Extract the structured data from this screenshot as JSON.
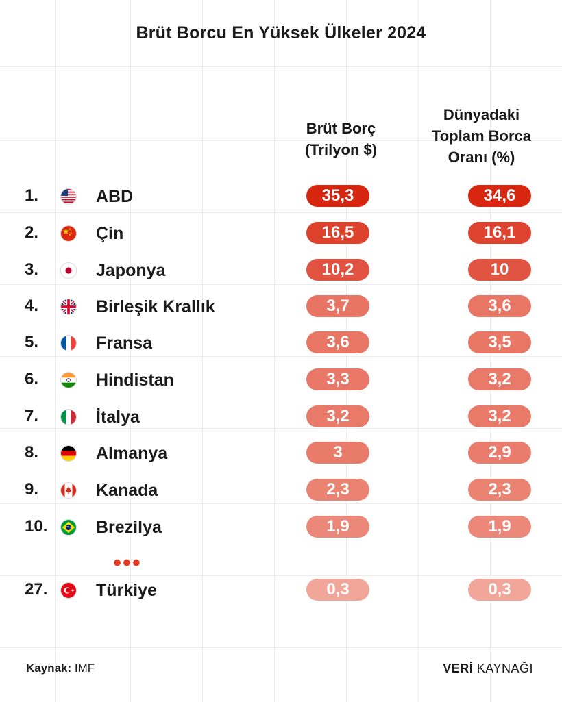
{
  "title": "Brüt Borcu En Yüksek Ülkeler 2024",
  "columns": {
    "debt": "Brüt Borç\n(Trilyon $)",
    "share": "Dünyadaki\nToplam Borca\nOranı (%)"
  },
  "chart_data": {
    "type": "table",
    "title": "Brüt Borcu En Yüksek Ülkeler 2024",
    "columns": [
      "Brüt Borç (Trilyon $)",
      "Dünyadaki Toplam Borca Oranı (%)"
    ],
    "rows": [
      {
        "rank": "1.",
        "country": "ABD",
        "flag": "us-flag-icon",
        "debt": "35,3",
        "share": "34,6",
        "debt_value": 35.3,
        "share_value": 34.6
      },
      {
        "rank": "2.",
        "country": "Çin",
        "flag": "cn-flag-icon",
        "debt": "16,5",
        "share": "16,1",
        "debt_value": 16.5,
        "share_value": 16.1
      },
      {
        "rank": "3.",
        "country": "Japonya",
        "flag": "jp-flag-icon",
        "debt": "10,2",
        "share": "10",
        "debt_value": 10.2,
        "share_value": 10
      },
      {
        "rank": "4.",
        "country": "Birleşik Krallık",
        "flag": "gb-flag-icon",
        "debt": "3,7",
        "share": "3,6",
        "debt_value": 3.7,
        "share_value": 3.6
      },
      {
        "rank": "5.",
        "country": "Fransa",
        "flag": "fr-flag-icon",
        "debt": "3,6",
        "share": "3,5",
        "debt_value": 3.6,
        "share_value": 3.5
      },
      {
        "rank": "6.",
        "country": "Hindistan",
        "flag": "in-flag-icon",
        "debt": "3,3",
        "share": "3,2",
        "debt_value": 3.3,
        "share_value": 3.2
      },
      {
        "rank": "7.",
        "country": "İtalya",
        "flag": "it-flag-icon",
        "debt": "3,2",
        "share": "3,2",
        "debt_value": 3.2,
        "share_value": 3.2
      },
      {
        "rank": "8.",
        "country": "Almanya",
        "flag": "de-flag-icon",
        "debt": "3",
        "share": "2,9",
        "debt_value": 3.0,
        "share_value": 2.9
      },
      {
        "rank": "9.",
        "country": "Kanada",
        "flag": "ca-flag-icon",
        "debt": "2,3",
        "share": "2,3",
        "debt_value": 2.3,
        "share_value": 2.3
      },
      {
        "rank": "10.",
        "country": "Brezilya",
        "flag": "br-flag-icon",
        "debt": "1,9",
        "share": "1,9",
        "debt_value": 1.9,
        "share_value": 1.9
      },
      {
        "rank": "27.",
        "country": "Türkiye",
        "flag": "tr-flag-icon",
        "debt": "0,3",
        "share": "0,3",
        "debt_value": 0.3,
        "share_value": 0.3
      }
    ]
  },
  "ellipsis": "•••",
  "colors": {
    "strong": "#d7260f",
    "light": "#fbcfc6"
  },
  "footer": {
    "source_label": "Kaynak:",
    "source_value": "IMF",
    "brand_bold": "VERİ",
    "brand_rest": "KAYNAĞI"
  }
}
